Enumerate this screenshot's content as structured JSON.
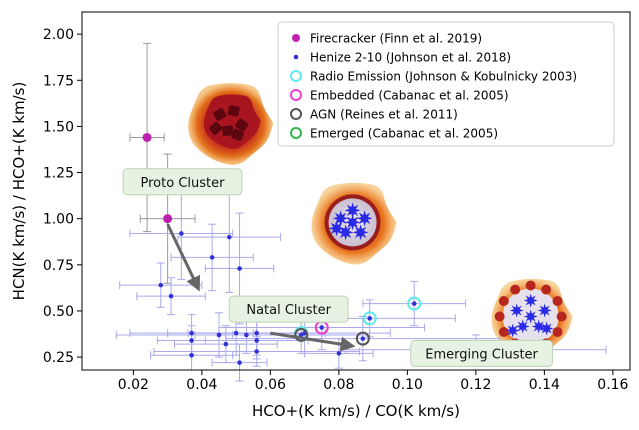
{
  "chart_data": {
    "type": "scatter",
    "xlabel": "HCO+(K km/s) / CO(K km/s)",
    "ylabel": "HCN(K km/s) / HCO+(K km/s)",
    "xlim": [
      0.005,
      0.165
    ],
    "ylim": [
      0.18,
      2.12
    ],
    "x_ticks": [
      "0.02",
      "0.04",
      "0.06",
      "0.08",
      "0.10",
      "0.12",
      "0.14",
      "0.16"
    ],
    "x_tick_values": [
      0.02,
      0.04,
      0.06,
      0.08,
      0.1,
      0.12,
      0.14,
      0.16
    ],
    "y_ticks": [
      "0.25",
      "0.50",
      "0.75",
      "1.00",
      "1.25",
      "1.50",
      "1.75",
      "2.00"
    ],
    "y_tick_values": [
      0.25,
      0.5,
      0.75,
      1.0,
      1.25,
      1.5,
      1.75,
      2.0
    ],
    "grid": false,
    "legend_position": "top-right",
    "series": [
      {
        "name": "Firecracker (Finn et al. 2019)",
        "color": "#c01fb0",
        "marker": "filled-circle",
        "points": [
          {
            "x": 0.024,
            "y": 1.44,
            "xerr": 0.005,
            "yerr": 0.51
          },
          {
            "x": 0.03,
            "y": 1.0,
            "xerr": 0.008,
            "yerr": 0.35
          }
        ]
      },
      {
        "name": "Henize 2-10 (Johnson et al. 2018)",
        "color": "#3232d8",
        "marker": "small-dot",
        "points": [
          {
            "x": 0.028,
            "y": 0.64,
            "xerr": 0.012,
            "yerr": 0.12
          },
          {
            "x": 0.031,
            "y": 0.58,
            "xerr": 0.01,
            "yerr": 0.1
          },
          {
            "x": 0.034,
            "y": 0.92,
            "xerr": 0.015,
            "yerr": 0.25
          },
          {
            "x": 0.037,
            "y": 0.38,
            "xerr": 0.018,
            "yerr": 0.1
          },
          {
            "x": 0.037,
            "y": 0.34,
            "xerr": 0.01,
            "yerr": 0.08
          },
          {
            "x": 0.037,
            "y": 0.26,
            "xerr": 0.012,
            "yerr": 0.08
          },
          {
            "x": 0.043,
            "y": 0.79,
            "xerr": 0.012,
            "yerr": 0.18
          },
          {
            "x": 0.045,
            "y": 0.37,
            "xerr": 0.03,
            "yerr": 0.12
          },
          {
            "x": 0.047,
            "y": 0.32,
            "xerr": 0.015,
            "yerr": 0.1
          },
          {
            "x": 0.048,
            "y": 0.9,
            "xerr": 0.015,
            "yerr": 0.3
          },
          {
            "x": 0.05,
            "y": 0.38,
            "xerr": 0.02,
            "yerr": 0.12
          },
          {
            "x": 0.051,
            "y": 0.73,
            "xerr": 0.01,
            "yerr": 0.3
          },
          {
            "x": 0.051,
            "y": 0.22,
            "xerr": 0.008,
            "yerr": 0.1
          },
          {
            "x": 0.053,
            "y": 0.37,
            "xerr": 0.015,
            "yerr": 0.1
          },
          {
            "x": 0.056,
            "y": 0.38,
            "xerr": 0.02,
            "yerr": 0.12
          },
          {
            "x": 0.056,
            "y": 0.34,
            "xerr": 0.015,
            "yerr": 0.1
          },
          {
            "x": 0.056,
            "y": 0.28,
            "xerr": 0.03,
            "yerr": 0.08
          },
          {
            "x": 0.069,
            "y": 0.37,
            "xerr": 0.02,
            "yerr": 0.1
          },
          {
            "x": 0.07,
            "y": 0.38,
            "xerr": 0.025,
            "yerr": 0.1
          },
          {
            "x": 0.075,
            "y": 0.41,
            "xerr": 0.03,
            "yerr": 0.12
          },
          {
            "x": 0.087,
            "y": 0.35,
            "xerr": 0.04,
            "yerr": 0.12
          },
          {
            "x": 0.089,
            "y": 0.46,
            "xerr": 0.025,
            "yerr": 0.1
          },
          {
            "x": 0.08,
            "y": 0.27,
            "xerr": 0.01,
            "yerr": 0.08
          },
          {
            "x": 0.102,
            "y": 0.54,
            "xerr": 0.015,
            "yerr": 0.12
          },
          {
            "x": 0.12,
            "y": 0.29,
            "xerr": 0.038,
            "yerr": 0.08
          }
        ]
      },
      {
        "name": "Radio Emission (Johnson & Kobulnicky 2003)",
        "color": "#5fe8ee",
        "marker": "open-circle",
        "points": [
          {
            "x": 0.069,
            "y": 0.38
          },
          {
            "x": 0.102,
            "y": 0.54
          },
          {
            "x": 0.089,
            "y": 0.46
          },
          {
            "x": 0.12,
            "y": 0.29
          }
        ]
      },
      {
        "name": "Embedded (Cabanac et al. 2005)",
        "color": "#ee3ccc",
        "marker": "open-circle",
        "points": [
          {
            "x": 0.075,
            "y": 0.41
          }
        ]
      },
      {
        "name": "AGN (Reines et al. 2011)",
        "color": "#555555",
        "marker": "open-circle",
        "points": [
          {
            "x": 0.069,
            "y": 0.37
          },
          {
            "x": 0.087,
            "y": 0.35
          }
        ]
      },
      {
        "name": "Emerged (Cabanac et al. 2005)",
        "color": "#2fb84a",
        "marker": "open-circle",
        "points": [
          {
            "x": 0.12,
            "y": 0.29
          }
        ]
      }
    ],
    "annotations": [
      {
        "text": "Proto Cluster",
        "x": 0.017,
        "y": 1.2
      },
      {
        "text": "Natal Cluster",
        "x": 0.048,
        "y": 0.51
      },
      {
        "text": "Emerging Cluster",
        "x": 0.101,
        "y": 0.27
      }
    ],
    "arrows": [
      {
        "from": [
          0.03,
          0.97
        ],
        "to": [
          0.039,
          0.62
        ]
      },
      {
        "from": [
          0.06,
          0.38
        ],
        "to": [
          0.084,
          0.31
        ]
      }
    ],
    "illustrations": [
      {
        "name": "proto-cluster-illustration",
        "x": 0.048,
        "y": 1.52
      },
      {
        "name": "natal-cluster-illustration",
        "x": 0.084,
        "y": 0.98
      },
      {
        "name": "emerging-cluster-illustration",
        "x": 0.136,
        "y": 0.47
      }
    ]
  }
}
